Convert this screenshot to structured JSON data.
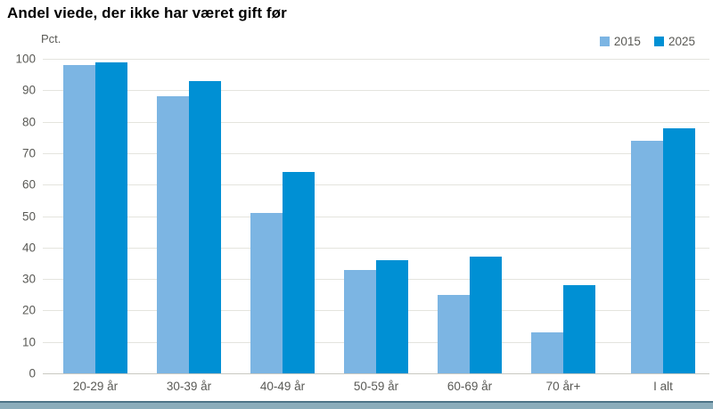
{
  "title": "Andel viede, der ikke har været gift før",
  "axis_unit_label": "Pct.",
  "colors": {
    "series_2015": "#7cb5e3",
    "series_2025": "#0090d4",
    "gridline": "#e4e4de",
    "axis_text": "#5a5a56",
    "footer_band": "#8badbb",
    "footer_band_edge": "#4d7487"
  },
  "chart_data": {
    "type": "bar",
    "title": "Andel viede, der ikke har været gift før",
    "xlabel": "",
    "ylabel": "Pct.",
    "ylim": [
      0,
      100
    ],
    "ytick_step": 10,
    "grid": true,
    "legend_position": "top-right",
    "categories": [
      "20-29 år",
      "30-39 år",
      "40-49 år",
      "50-59 år",
      "60-69 år",
      "70 år+",
      "I alt"
    ],
    "series": [
      {
        "name": "2015",
        "color": "#7cb5e3",
        "values": [
          98,
          88,
          51,
          33,
          25,
          13,
          74
        ]
      },
      {
        "name": "2025",
        "color": "#0090d4",
        "values": [
          99,
          93,
          64,
          36,
          37,
          28,
          78
        ]
      }
    ]
  }
}
